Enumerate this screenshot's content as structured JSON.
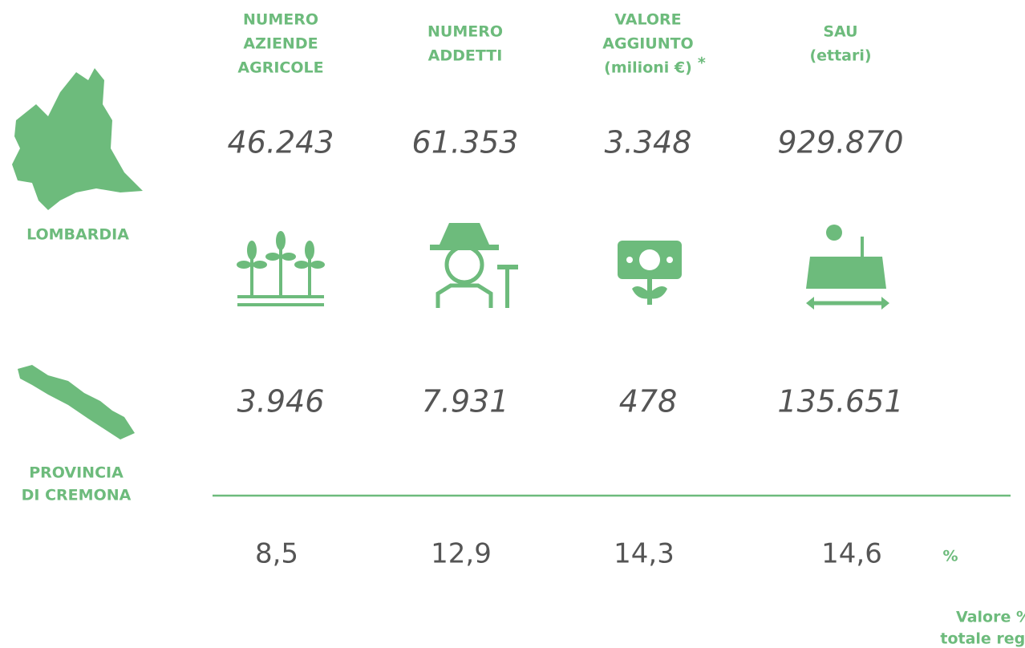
{
  "columns": [
    {
      "header": [
        "NUMERO",
        "AZIENDE",
        "AGRICOLE"
      ],
      "lombardia": "46.243",
      "cremona": "3.946",
      "percent": "8,5"
    },
    {
      "header": [
        "NUMERO",
        "ADDETTI"
      ],
      "lombardia": "61.353",
      "cremona": "7.931",
      "percent": "12,9"
    },
    {
      "header": [
        "VALORE",
        "AGGIUNTO",
        "(milioni €)"
      ],
      "note": "*",
      "lombardia": "3.348",
      "cremona": "478",
      "percent": "14,3"
    },
    {
      "header": [
        "SAU",
        "(ettari)"
      ],
      "lombardia": "929.870",
      "cremona": "135.651",
      "percent": "14,6"
    }
  ],
  "regions": {
    "lombardia": [
      "LOMBARDIA"
    ],
    "cremona": [
      "PROVINCIA",
      "DI CREMONA"
    ]
  },
  "percent_symbol": "%",
  "footer": [
    "Valore % sul",
    "totale regionale"
  ]
}
